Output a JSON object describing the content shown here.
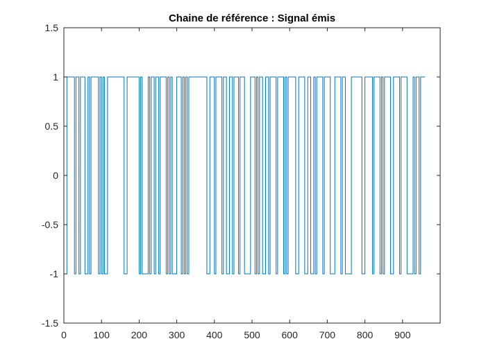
{
  "chart_data": {
    "type": "line",
    "title": "Chaine de référence : Signal émis",
    "xlabel": "",
    "ylabel": "",
    "xlim": [
      0,
      1000
    ],
    "ylim": [
      -1.5,
      1.5
    ],
    "x_ticks": [
      0,
      100,
      200,
      300,
      400,
      500,
      600,
      700,
      800,
      900
    ],
    "y_ticks": [
      -1.5,
      -1,
      -0.5,
      0,
      0.5,
      1,
      1.5
    ],
    "grid": false,
    "legend": "none",
    "line_color": "#0072BD",
    "series": [
      {
        "step_width": 4,
        "values": [
          -1,
          -1,
          1,
          1,
          1,
          1,
          1,
          -1,
          1,
          1,
          -1,
          1,
          1,
          1,
          -1,
          -1,
          1,
          -1,
          1,
          1,
          1,
          1,
          1,
          -1,
          1,
          -1,
          1,
          -1,
          -1,
          1,
          1,
          1,
          1,
          1,
          1,
          1,
          1,
          1,
          1,
          1,
          -1,
          -1,
          1,
          1,
          1,
          1,
          1,
          1,
          1,
          1,
          -1,
          1,
          -1,
          -1,
          -1,
          -1,
          1,
          -1,
          1,
          1,
          -1,
          1,
          1,
          -1,
          1,
          1,
          1,
          1,
          -1,
          1,
          -1,
          1,
          -1,
          -1,
          -1,
          1,
          1,
          1,
          -1,
          1,
          -1,
          1,
          -1,
          1,
          1,
          1,
          1,
          1,
          1,
          1,
          1,
          1,
          1,
          1,
          1,
          -1,
          -1,
          1,
          1,
          1,
          -1,
          1,
          1,
          1,
          1,
          -1,
          1,
          1,
          -1,
          -1,
          1,
          1,
          -1,
          1,
          1,
          1,
          -1,
          1,
          1,
          1,
          -1,
          -1,
          -1,
          -1,
          1,
          1,
          1,
          -1,
          1,
          -1,
          1,
          1,
          -1,
          -1,
          1,
          1,
          -1,
          1,
          1,
          1,
          1,
          -1,
          1,
          1,
          1,
          1,
          -1,
          1,
          -1,
          1,
          1,
          1,
          1,
          1,
          -1,
          -1,
          1,
          1,
          1,
          1,
          -1,
          -1,
          1,
          1,
          -1,
          -1,
          1,
          -1,
          1,
          1,
          1,
          1,
          -1,
          1,
          1,
          1,
          1,
          -1,
          -1,
          -1,
          1,
          1,
          1,
          1,
          -1,
          1,
          1,
          -1,
          -1,
          -1,
          -1,
          1,
          1,
          1,
          1,
          1,
          1,
          1,
          -1,
          -1,
          1,
          1,
          1,
          1,
          1,
          -1,
          1,
          1,
          1,
          1,
          -1,
          1,
          -1,
          1,
          1,
          1,
          1,
          -1,
          -1,
          1,
          1,
          1,
          1,
          -1,
          1,
          1,
          1,
          1,
          -1,
          -1,
          -1,
          -1,
          1,
          -1,
          1,
          1,
          -1,
          1,
          1,
          1
        ]
      }
    ]
  }
}
